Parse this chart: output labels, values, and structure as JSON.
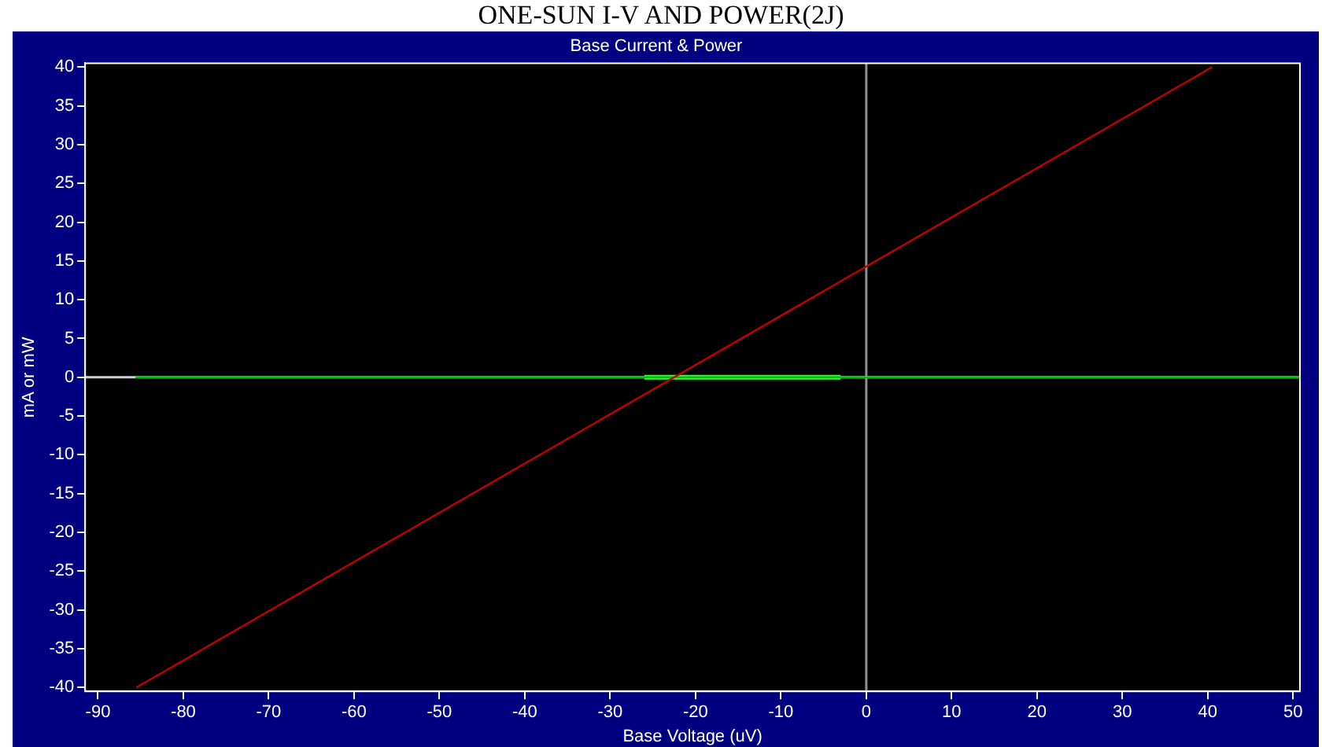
{
  "chart_data": {
    "type": "line",
    "title": "ONE-SUN I-V AND POWER(2J)",
    "subtitle": "Base Current & Power",
    "xlabel": "Base Voltage (uV)",
    "ylabel": "mA or mW",
    "xlim": [
      -91.5,
      50.8
    ],
    "xticks": [
      -90,
      -80,
      -70,
      -60,
      -50,
      -40,
      -30,
      -20,
      -10,
      0,
      10,
      20,
      30,
      40,
      50
    ],
    "ylim": [
      -40.5,
      40.5
    ],
    "yticks": [
      -40,
      -35,
      -30,
      -25,
      -20,
      -15,
      -10,
      -5,
      0,
      5,
      10,
      15,
      20,
      25,
      30,
      35,
      40
    ],
    "series": [
      {
        "color": "#c00000",
        "x": [
          -85.5,
          40.5
        ],
        "values": [
          -40,
          40
        ]
      },
      {
        "color": "#00c000",
        "x": [
          -85.6,
          50.8
        ],
        "values": [
          0,
          0
        ]
      },
      {
        "color": "#33ff33",
        "x": [
          -26,
          -3
        ],
        "values": [
          0,
          0
        ]
      }
    ],
    "ref_lines": [
      {
        "axis": "x",
        "value": 0,
        "color": "#909090"
      },
      {
        "axis": "y",
        "value": 0,
        "color": "#d0d0d0"
      }
    ],
    "grid": false,
    "legend": false,
    "marker": "none",
    "line_style": "solid"
  }
}
